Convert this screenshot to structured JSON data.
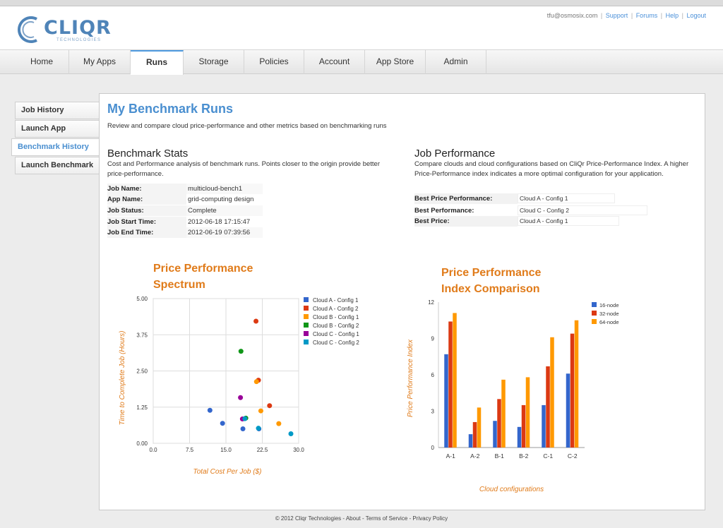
{
  "header": {
    "user_email": "tfu@osmosix.com",
    "links": [
      "Support",
      "Forums",
      "Help",
      "Logout"
    ],
    "logo_text": "CLIQR",
    "logo_sub": "TECHNOLOGIES"
  },
  "tabs": [
    "Home",
    "My Apps",
    "Runs",
    "Storage",
    "Policies",
    "Account",
    "App Store",
    "Admin"
  ],
  "active_tab": "Runs",
  "sidebar": [
    "Job History",
    "Launch App",
    "Benchmark History",
    "Launch Benchmark"
  ],
  "active_sidebar": "Benchmark History",
  "page": {
    "title": "My Benchmark Runs",
    "description": "Review and compare cloud price-performance and other metrics based on benchmarking runs"
  },
  "benchmark_stats": {
    "title": "Benchmark Stats",
    "description": "Cost and Performance analysis of benchmark runs. Points closer to the origin provide better price-performance.",
    "rows": [
      {
        "label": "Job Name:",
        "value": "multicloud-bench1"
      },
      {
        "label": "App Name:",
        "value": "grid-computing design"
      },
      {
        "label": "Job Status:",
        "value": "Complete"
      },
      {
        "label": "Job Start Time:",
        "value": "2012-06-18 17:15:47"
      },
      {
        "label": "Job End Time:",
        "value": "2012-06-19 07:39:56"
      }
    ]
  },
  "job_performance": {
    "title": "Job Performance",
    "description": "Compare clouds and cloud configurations based on CliQr Price-Performance Index. A higher Price-Performance index indicates a more optimal configuration for your application.",
    "rows": [
      {
        "label": "Best Price Performance:",
        "value": "Cloud A - Config 1"
      },
      {
        "label": "Best Performance:",
        "value": "Cloud C - Config 2"
      },
      {
        "label": "Best Price:",
        "value": "Cloud A - Config 1"
      }
    ]
  },
  "colors": {
    "accent": "#4a8fd0",
    "chart_title": "#e07b1a"
  },
  "chart_data": [
    {
      "type": "scatter",
      "title": "Price Performance Spectrum",
      "title_lines": [
        "Price Performance",
        "Spectrum"
      ],
      "xlabel": "Total Cost Per Job ($)",
      "ylabel": "Time to Complete Job (Hours)",
      "xlim": [
        0,
        30
      ],
      "ylim": [
        0,
        5
      ],
      "x_ticks": [
        "0.0",
        "7.5",
        "15.0",
        "22.5",
        "30.0"
      ],
      "y_ticks": [
        "0.00",
        "1.25",
        "2.50",
        "3.75",
        "5.00"
      ],
      "grid": true,
      "legend": "right",
      "series": [
        {
          "name": "Cloud A - Config 1",
          "color": "#3366cc",
          "points": [
            [
              11.7,
              1.14
            ],
            [
              14.3,
              0.69
            ],
            [
              18.5,
              0.5
            ],
            [
              21.8,
              0.5
            ]
          ]
        },
        {
          "name": "Cloud A - Config 2",
          "color": "#dc3912",
          "points": [
            [
              21.2,
              4.22
            ],
            [
              21.7,
              2.18
            ],
            [
              24.0,
              1.3
            ]
          ]
        },
        {
          "name": "Cloud B - Config 1",
          "color": "#ff9900",
          "points": [
            [
              21.3,
              2.13
            ],
            [
              22.2,
              1.12
            ],
            [
              25.9,
              0.68
            ]
          ]
        },
        {
          "name": "Cloud B - Config 2",
          "color": "#109618",
          "points": [
            [
              18.1,
              3.18
            ],
            [
              19.1,
              0.87
            ]
          ]
        },
        {
          "name": "Cloud C - Config 1",
          "color": "#990099",
          "points": [
            [
              18.0,
              1.58
            ],
            [
              18.4,
              0.84
            ]
          ]
        },
        {
          "name": "Cloud C - Config 2",
          "color": "#0099c6",
          "points": [
            [
              18.9,
              0.85
            ],
            [
              21.7,
              0.52
            ],
            [
              28.4,
              0.33
            ]
          ]
        }
      ]
    },
    {
      "type": "bar",
      "title": "Price Performance Index Comparison",
      "title_lines": [
        "Price Performance",
        "Index Comparison"
      ],
      "xlabel": "Cloud configurations",
      "ylabel": "Price Performance Index",
      "ylim": [
        0,
        12
      ],
      "y_ticks": [
        "0",
        "3",
        "6",
        "9",
        "12"
      ],
      "grid": false,
      "legend": "top-right",
      "categories": [
        "A-1",
        "A-2",
        "B-1",
        "B-2",
        "C-1",
        "C-2"
      ],
      "series": [
        {
          "name": "16-node",
          "color": "#3366cc",
          "values": [
            7.7,
            1.1,
            2.2,
            1.7,
            3.5,
            6.1
          ]
        },
        {
          "name": "32-node",
          "color": "#dc3912",
          "values": [
            10.4,
            2.1,
            4.0,
            3.5,
            6.7,
            9.4
          ]
        },
        {
          "name": "64-node",
          "color": "#ff9900",
          "values": [
            11.1,
            3.3,
            5.6,
            5.8,
            9.1,
            10.5
          ]
        }
      ]
    }
  ],
  "footer": "© 2012 Cliqr Technologies - About - Terms of Service - Privacy Policy"
}
